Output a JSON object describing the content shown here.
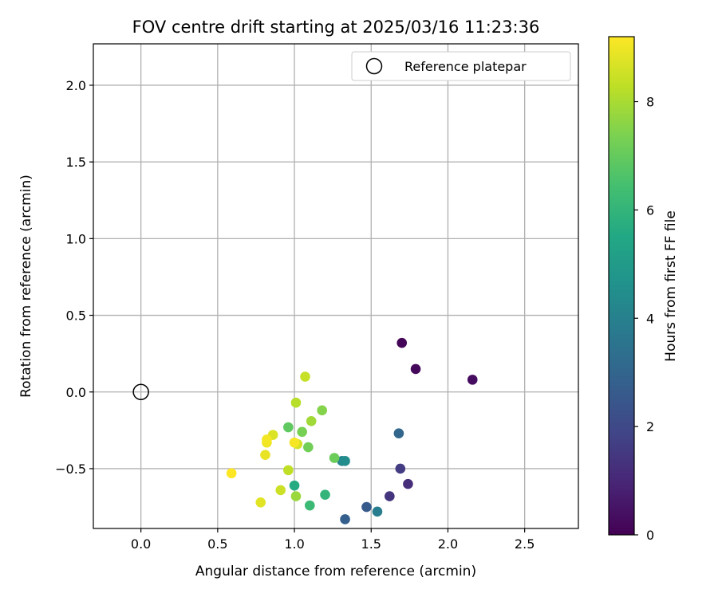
{
  "chart_data": {
    "type": "scatter",
    "title": "FOV centre drift starting at 2025/03/16 11:23:36",
    "xlabel": "Angular distance from reference (arcmin)",
    "ylabel": "Rotation from reference (arcmin)",
    "xlim": [
      -0.31,
      2.85
    ],
    "ylim": [
      -0.89,
      2.27
    ],
    "xticks": [
      0.0,
      0.5,
      1.0,
      1.5,
      2.0,
      2.5
    ],
    "xtick_labels": [
      "0.0",
      "0.5",
      "1.0",
      "1.5",
      "2.0",
      "2.5"
    ],
    "yticks": [
      -0.5,
      0.0,
      0.5,
      1.0,
      1.5,
      2.0
    ],
    "ytick_labels": [
      "−0.5",
      "0.0",
      "0.5",
      "1.0",
      "1.5",
      "2.0"
    ],
    "grid": true,
    "colormap": "viridis",
    "colorbar": {
      "label": "Hours from first FF file",
      "range": [
        0,
        9.2
      ],
      "ticks": [
        0,
        2,
        4,
        6,
        8
      ],
      "tick_labels": [
        "0",
        "2",
        "4",
        "6",
        "8"
      ]
    },
    "reference": {
      "x": 0.0,
      "y": 0.0,
      "label": "Reference platepar"
    },
    "legend_position": "top-right",
    "points": [
      {
        "x": 1.7,
        "y": 0.32,
        "hours": 0.1
      },
      {
        "x": 1.79,
        "y": 0.15,
        "hours": 0.2
      },
      {
        "x": 2.16,
        "y": 0.08,
        "hours": 0.3
      },
      {
        "x": 1.74,
        "y": -0.6,
        "hours": 1.2
      },
      {
        "x": 1.62,
        "y": -0.68,
        "hours": 1.4
      },
      {
        "x": 1.69,
        "y": -0.5,
        "hours": 1.6
      },
      {
        "x": 1.47,
        "y": -0.75,
        "hours": 2.6
      },
      {
        "x": 1.33,
        "y": -0.83,
        "hours": 2.8
      },
      {
        "x": 1.68,
        "y": -0.27,
        "hours": 3.0
      },
      {
        "x": 1.54,
        "y": -0.78,
        "hours": 3.9
      },
      {
        "x": 1.31,
        "y": -0.45,
        "hours": 4.2
      },
      {
        "x": 1.33,
        "y": -0.45,
        "hours": 4.4
      },
      {
        "x": 1.0,
        "y": -0.61,
        "hours": 5.6
      },
      {
        "x": 1.2,
        "y": -0.67,
        "hours": 6.0
      },
      {
        "x": 1.1,
        "y": -0.74,
        "hours": 6.2
      },
      {
        "x": 0.96,
        "y": -0.23,
        "hours": 6.9
      },
      {
        "x": 1.26,
        "y": -0.43,
        "hours": 7.1
      },
      {
        "x": 1.09,
        "y": -0.36,
        "hours": 7.2
      },
      {
        "x": 1.05,
        "y": -0.26,
        "hours": 7.3
      },
      {
        "x": 1.18,
        "y": -0.12,
        "hours": 7.5
      },
      {
        "x": 1.01,
        "y": -0.68,
        "hours": 7.8
      },
      {
        "x": 1.11,
        "y": -0.19,
        "hours": 7.9
      },
      {
        "x": 1.01,
        "y": -0.07,
        "hours": 8.2
      },
      {
        "x": 0.96,
        "y": -0.51,
        "hours": 8.3
      },
      {
        "x": 1.07,
        "y": 0.1,
        "hours": 8.4
      },
      {
        "x": 0.91,
        "y": -0.64,
        "hours": 8.5
      },
      {
        "x": 1.02,
        "y": -0.34,
        "hours": 8.6
      },
      {
        "x": 0.86,
        "y": -0.28,
        "hours": 8.7
      },
      {
        "x": 0.78,
        "y": -0.72,
        "hours": 8.8
      },
      {
        "x": 0.81,
        "y": -0.41,
        "hours": 8.9
      },
      {
        "x": 0.82,
        "y": -0.33,
        "hours": 9.0
      },
      {
        "x": 0.82,
        "y": -0.31,
        "hours": 9.05
      },
      {
        "x": 1.0,
        "y": -0.33,
        "hours": 9.1
      },
      {
        "x": 0.59,
        "y": -0.53,
        "hours": 9.2
      }
    ]
  }
}
